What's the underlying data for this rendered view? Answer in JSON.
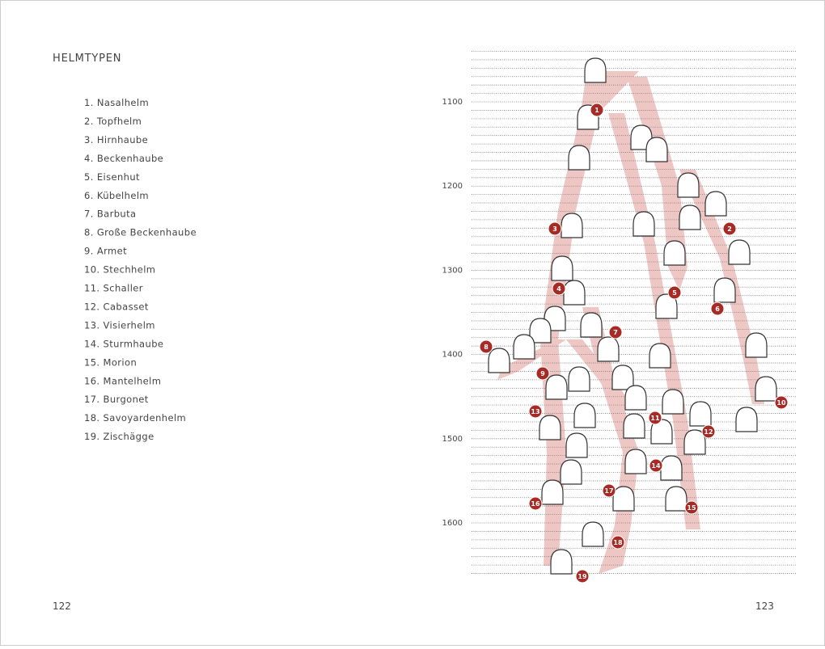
{
  "left_page": {
    "title": "HELMTYPEN",
    "items": [
      "1. Nasalhelm",
      "2. Topfhelm",
      "3. Hirnhaube",
      "4. Beckenhaube",
      "5. Eisenhut",
      "6. Kübelhelm",
      "7. Barbuta",
      "8. Große Beckenhaube",
      "9. Armet",
      "10. Stechhelm",
      "11. Schaller",
      "12. Cabasset",
      "13. Visierhelm",
      "14. Sturmhaube",
      "15. Morion",
      "16. Mantelhelm",
      "17. Burgonet",
      "18. Savoyardenhelm",
      "19. Zischägge"
    ],
    "page_number": "122"
  },
  "right_page": {
    "years": [
      "1100",
      "1200",
      "1300",
      "1400",
      "1500",
      "1600"
    ],
    "markers": [
      "1",
      "2",
      "3",
      "4",
      "5",
      "6",
      "7",
      "8",
      "9",
      "10",
      "11",
      "12",
      "13",
      "14",
      "15",
      "16",
      "17",
      "18",
      "19"
    ],
    "page_number": "123"
  }
}
